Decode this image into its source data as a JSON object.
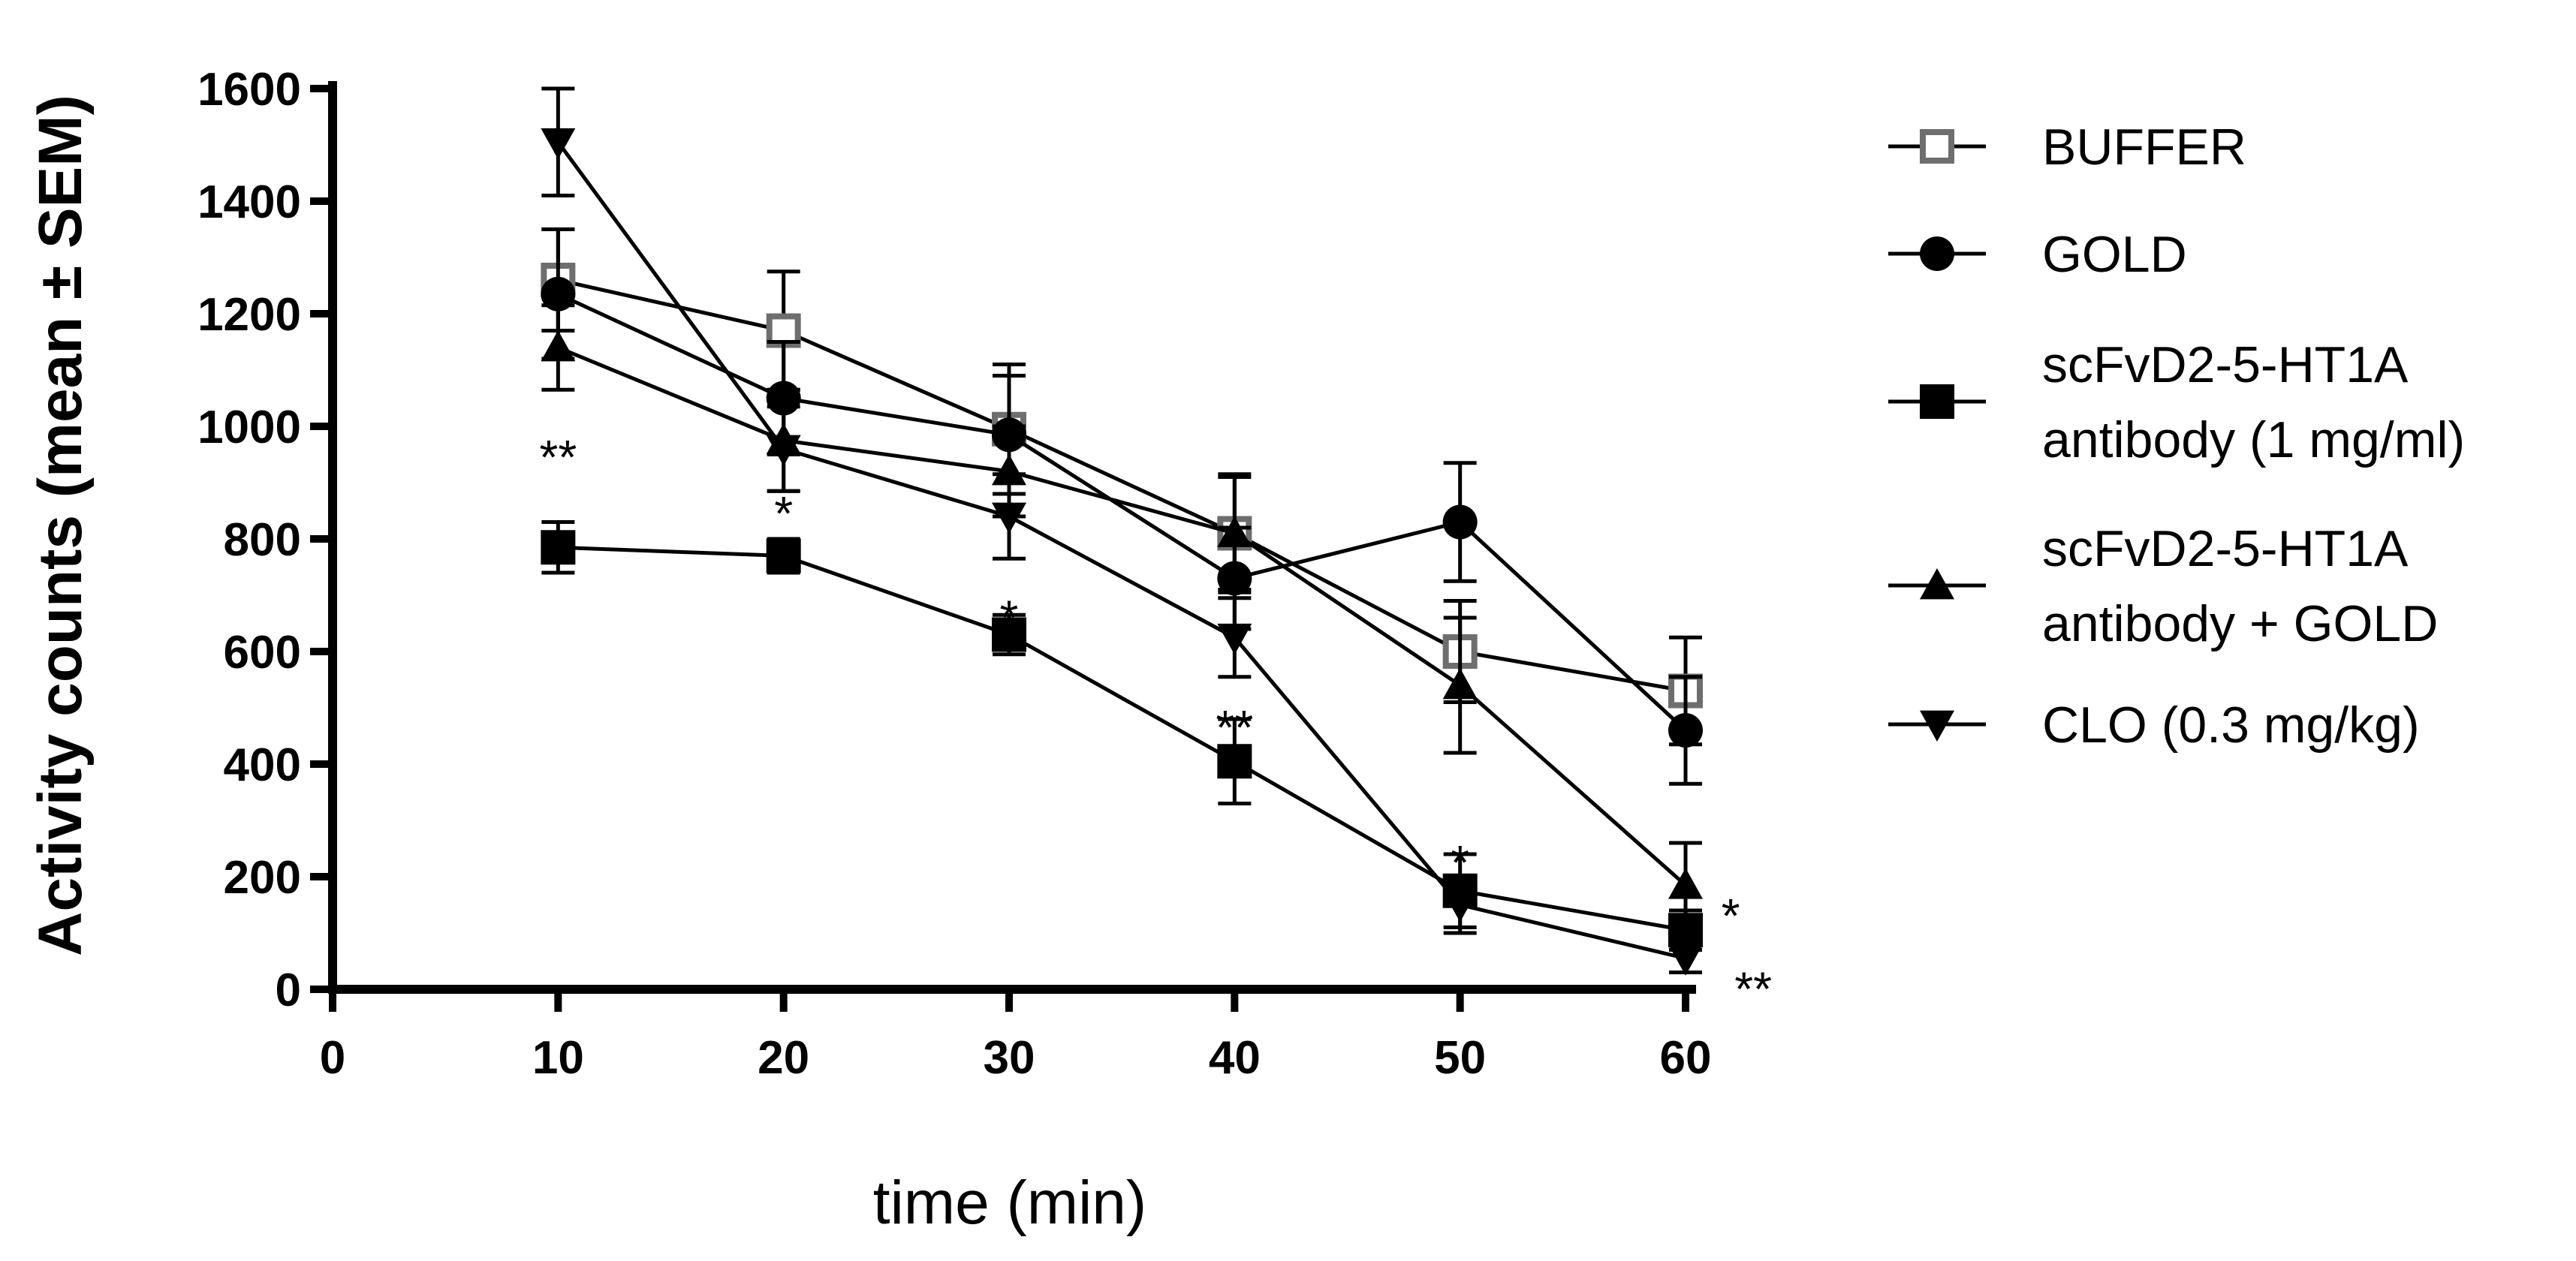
{
  "chart_data": {
    "type": "line",
    "title": "",
    "xlabel": "time (min)",
    "ylabel": "Activity counts (mean ± SEM)",
    "xlim": [
      0,
      60
    ],
    "ylim": [
      0,
      1600
    ],
    "xticks": [
      "0",
      "10",
      "20",
      "30",
      "40",
      "50",
      "60"
    ],
    "yticks": [
      "0",
      "200",
      "400",
      "600",
      "800",
      "1000",
      "1200",
      "1400",
      "1600"
    ],
    "x": [
      10,
      20,
      30,
      40,
      50,
      60
    ],
    "series": [
      {
        "name": "BUFFER",
        "marker": "square-open",
        "color": "#6e6e6e",
        "values": [
          1260,
          1170,
          995,
          810,
          600,
          530
        ],
        "errors": [
          90,
          105,
          115,
          105,
          90,
          95
        ]
      },
      {
        "name": "GOLD",
        "marker": "circle",
        "color": "#000000",
        "values": [
          1235,
          1050,
          985,
          730,
          830,
          460
        ],
        "errors": [
          115,
          100,
          105,
          90,
          105,
          95
        ]
      },
      {
        "name": "scFvD2-5-HT1A antibody (1 mg/ml)",
        "marker": "square",
        "color": "#000000",
        "values": [
          785,
          770,
          630,
          405,
          175,
          105
        ],
        "errors": [
          45,
          30,
          35,
          75,
          65,
          35
        ]
      },
      {
        "name": "scFvD2-5-HT1A antibody + GOLD",
        "marker": "triangle-up",
        "color": "#000000",
        "values": [
          1140,
          975,
          920,
          810,
          540,
          185
        ],
        "errors": [
          75,
          90,
          80,
          100,
          120,
          75
        ]
      },
      {
        "name": "CLO (0.3 mg/kg)",
        "marker": "triangle-down",
        "color": "#000000",
        "values": [
          1505,
          960,
          840,
          625,
          150,
          55
        ],
        "errors": [
          95,
          75,
          75,
          70,
          50,
          25
        ]
      }
    ],
    "legend": {
      "position": "right",
      "labels": [
        [
          "BUFFER"
        ],
        [
          "GOLD"
        ],
        [
          "scFvD2-5-HT1A",
          "antibody (1 mg/ml)"
        ],
        [
          "scFvD2-5-HT1A",
          "antibody + GOLD"
        ],
        [
          "CLO (0.3 mg/kg)"
        ]
      ]
    },
    "annotations": [
      {
        "x": 10,
        "y": 975,
        "text": "**"
      },
      {
        "x": 20,
        "y": 875,
        "text": "*"
      },
      {
        "x": 30,
        "y": 690,
        "text": "*"
      },
      {
        "x": 40,
        "y": 495,
        "text": "**"
      },
      {
        "x": 50,
        "y": 255,
        "text": "*"
      },
      {
        "x": 62,
        "y": 160,
        "text": "*"
      },
      {
        "x": 63,
        "y": 30,
        "text": "**"
      }
    ]
  }
}
